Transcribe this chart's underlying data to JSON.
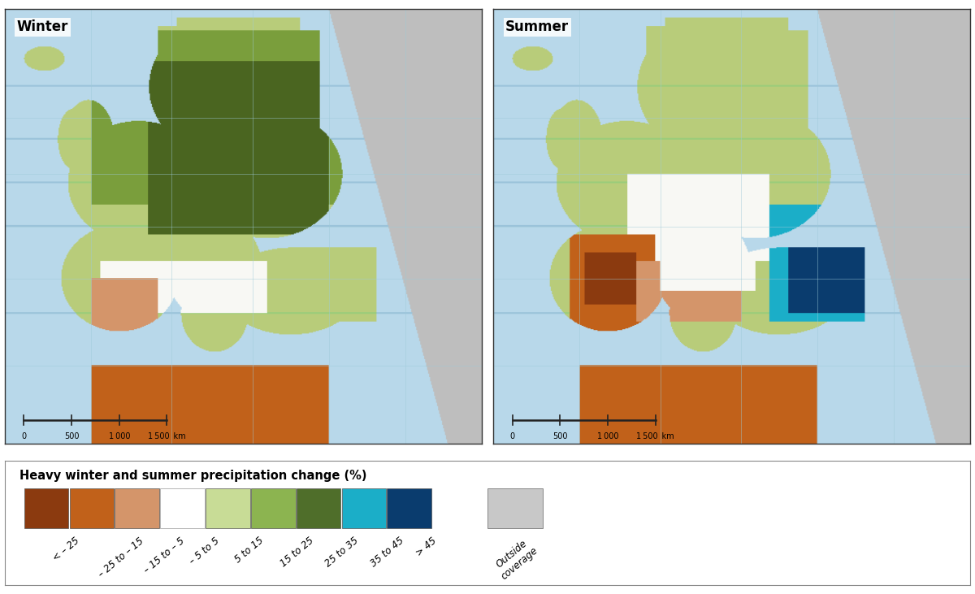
{
  "title_left": "Winter",
  "title_right": "Summer",
  "legend_title": "Heavy winter and summer precipitation change (%)",
  "legend_colors": [
    "#8B3A0F",
    "#C1611A",
    "#D4956A",
    "#FFFFFF",
    "#C8DC96",
    "#8CB450",
    "#4F6E2A",
    "#1BAEC8",
    "#0A3C6E"
  ],
  "legend_labels": [
    "< – 25",
    "– 25 to – 15",
    "– 15 to – 5",
    "– 5 to 5",
    "5 to 15",
    "15 to 25",
    "25 to 35",
    "35 to 45",
    "> 45"
  ],
  "outside_color": "#C8C8C8",
  "outside_label": "Outside\ncoverage",
  "ocean_color": "#B8D8EA",
  "outside_coverage_color": "#BEBEBE",
  "fig_bg": "#ffffff",
  "legend_box_border": "#888888",
  "border_dark": "#333333",
  "grid_color": "#9ECAD8",
  "scalebar_color": "#222222",
  "winter_colors": {
    "dark_green": "#4A6520",
    "med_green": "#7A9E3C",
    "light_green": "#B8CC7A",
    "very_light_green": "#D0DC96",
    "white_neutral": "#F5F5F0",
    "light_brown": "#D4956A",
    "brown": "#C1611A",
    "dark_brown": "#8B3A0F",
    "teal": "#1BAEC8",
    "dark_blue": "#0A3C6E"
  }
}
